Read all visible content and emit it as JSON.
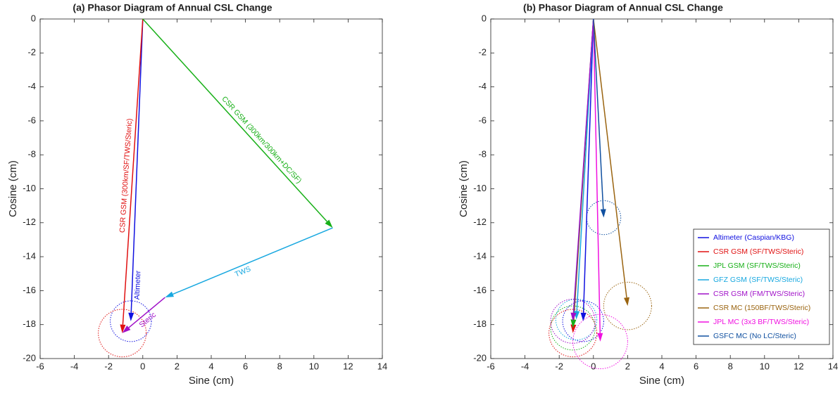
{
  "chart_data": [
    {
      "type": "vector",
      "title": "(a) Phasor Diagram of Annual CSL Change",
      "xlabel": "Sine (cm)",
      "ylabel": "Cosine (cm)",
      "xlim": [
        -6,
        14
      ],
      "ylim": [
        -20,
        0
      ],
      "xticks": [
        -6,
        -4,
        -2,
        0,
        2,
        4,
        6,
        8,
        10,
        12,
        14
      ],
      "yticks": [
        -20,
        -18,
        -16,
        -14,
        -12,
        -10,
        -8,
        -6,
        -4,
        -2,
        0
      ],
      "legend": false,
      "series": [
        {
          "name": "Altimeter",
          "color": "#1010e0",
          "x": [
            0,
            -0.7
          ],
          "y": [
            0,
            -17.8
          ],
          "radius": 1.2
        },
        {
          "name": "CSR GSM (300km/SF/TWS/Steric)",
          "color": "#e01010",
          "x": [
            0,
            -1.2
          ],
          "y": [
            0,
            -18.5
          ],
          "radius": 1.4
        },
        {
          "name": "CSR GSM (300km/300km+DC/SF)",
          "color": "#18b018",
          "x": [
            0,
            11.1
          ],
          "y": [
            0,
            -12.3
          ]
        },
        {
          "name": "TWS",
          "color": "#18a8e0",
          "x": [
            11.1,
            1.3
          ],
          "y": [
            -12.3,
            -16.4
          ]
        },
        {
          "name": "Steric",
          "color": "#a010c8",
          "x": [
            1.3,
            -1.2
          ],
          "y": [
            -16.4,
            -18.5
          ]
        }
      ]
    },
    {
      "type": "vector",
      "title": "(b) Phasor Diagram of Annual CSL Change",
      "xlabel": "Sine (cm)",
      "ylabel": "Cosine (cm)",
      "xlim": [
        -6,
        14
      ],
      "ylim": [
        -20,
        0
      ],
      "xticks": [
        -6,
        -4,
        -2,
        0,
        2,
        4,
        6,
        8,
        10,
        12,
        14
      ],
      "yticks": [
        -20,
        -18,
        -16,
        -14,
        -12,
        -10,
        -8,
        -6,
        -4,
        -2,
        0
      ],
      "legend": "southeast",
      "series": [
        {
          "name": "Altimeter (Caspian/KBG)",
          "color": "#1010e0",
          "x": [
            0,
            -0.6
          ],
          "y": [
            0,
            -17.8
          ],
          "radius": 1.2
        },
        {
          "name": "CSR GSM (SF/TWS/Steric)",
          "color": "#e01010",
          "x": [
            0,
            -1.2
          ],
          "y": [
            0,
            -18.5
          ],
          "radius": 1.4
        },
        {
          "name": "JPL GSM (SF/TWS/Steric)",
          "color": "#18b018",
          "x": [
            0,
            -1.2
          ],
          "y": [
            0,
            -18.2
          ],
          "radius": 1.3
        },
        {
          "name": "GFZ GSM (SF/TWS/Steric)",
          "color": "#18a8e0",
          "x": [
            0,
            -1.0
          ],
          "y": [
            0,
            -17.7
          ],
          "radius": 1.2
        },
        {
          "name": "CSR GSM (FM/TWS/Steric)",
          "color": "#a010c8",
          "x": [
            0,
            -1.2
          ],
          "y": [
            0,
            -17.8
          ],
          "radius": 1.3
        },
        {
          "name": "CSR MC (150BF/TWS/Steric)",
          "color": "#9a6410",
          "x": [
            0,
            2.0
          ],
          "y": [
            0,
            -16.9
          ],
          "radius": 1.4
        },
        {
          "name": "JPL MC (3x3 BF/TWS/Steric)",
          "color": "#f010e0",
          "x": [
            0,
            0.4
          ],
          "y": [
            0,
            -19.0
          ],
          "radius": 1.6
        },
        {
          "name": "GSFC MC (No LC/Steric)",
          "color": "#1050a0",
          "x": [
            0,
            0.6
          ],
          "y": [
            0,
            -11.7
          ],
          "radius": 1.0
        }
      ]
    }
  ]
}
